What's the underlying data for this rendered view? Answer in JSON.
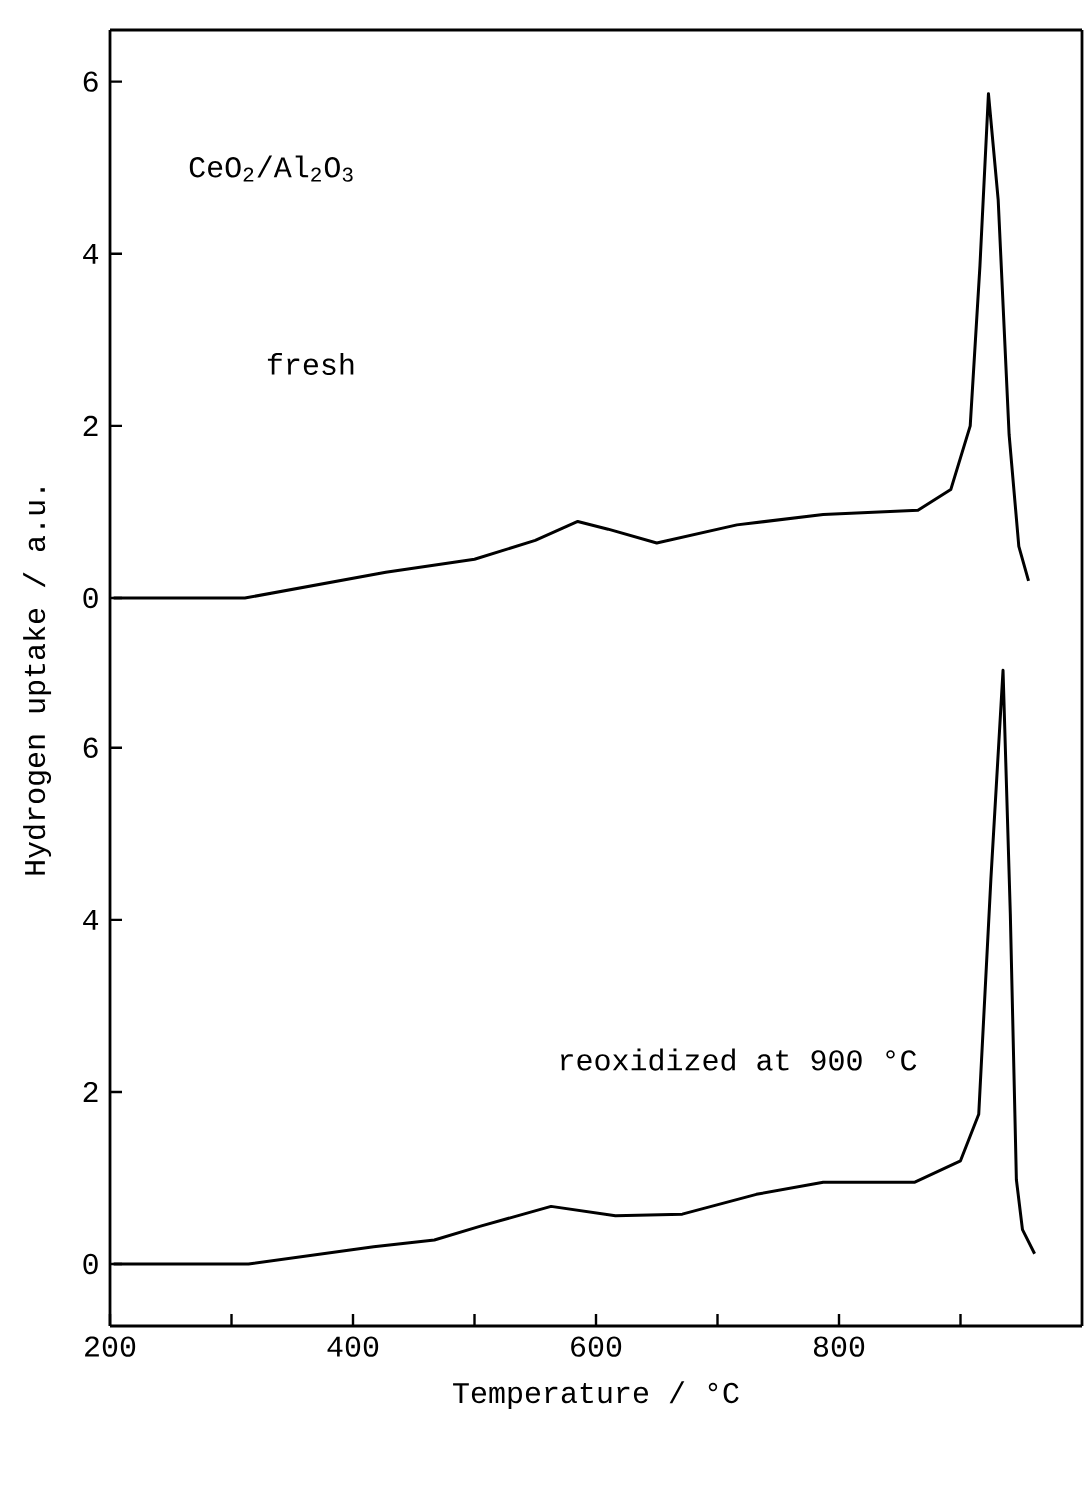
{
  "chart_data": [
    {
      "type": "line",
      "ylabel": "Hydrogen uptake / a.u.",
      "xlim": [
        200,
        1000
      ],
      "ylim": [
        -0.72,
        6.6
      ],
      "yticks": [
        0,
        2,
        4,
        6
      ],
      "tick_labels": "y",
      "annotations": [
        "CeO$_{2}$/Al$_{2}$O$_{3}$",
        "fresh"
      ],
      "series": [
        {
          "color": "#000000",
          "x": [
            203,
            311,
            427,
            500,
            550,
            585,
            610,
            650,
            716,
            787,
            865,
            892,
            908,
            916,
            923,
            931,
            940,
            948,
            956
          ],
          "values": [
            0,
            0,
            0.3,
            0.45,
            0.67,
            0.89,
            0.8,
            0.64,
            0.85,
            0.97,
            1.02,
            1.26,
            2.0,
            3.86,
            5.86,
            4.63,
            1.9,
            0.6,
            0.2
          ]
        }
      ]
    },
    {
      "type": "line",
      "xlabel": "Temperature  / °C",
      "xlim": [
        200,
        1000
      ],
      "ylim": [
        -0.72,
        7.02
      ],
      "yticks": [
        0,
        2,
        4,
        6
      ],
      "xticks": [
        200,
        {
          "value": 300,
          "label": null
        },
        400,
        {
          "value": 500,
          "label": null
        },
        600,
        {
          "value": 700,
          "label": null
        },
        800,
        {
          "value": 900,
          "label": null
        }
      ],
      "annotations": [
        "reoxidized at 900 °C"
      ],
      "series": [
        {
          "color": "#000000",
          "x": [
            203,
            314,
            417,
            467,
            505,
            563,
            616,
            671,
            732,
            787,
            862,
            900,
            915,
            925,
            935,
            941,
            946,
            951,
            961
          ],
          "values": [
            0,
            0,
            0.2,
            0.28,
            0.44,
            0.67,
            0.56,
            0.58,
            0.81,
            0.95,
            0.95,
            1.2,
            1.74,
            4.47,
            6.9,
            4.07,
            0.98,
            0.4,
            0.12
          ]
        }
      ]
    }
  ]
}
